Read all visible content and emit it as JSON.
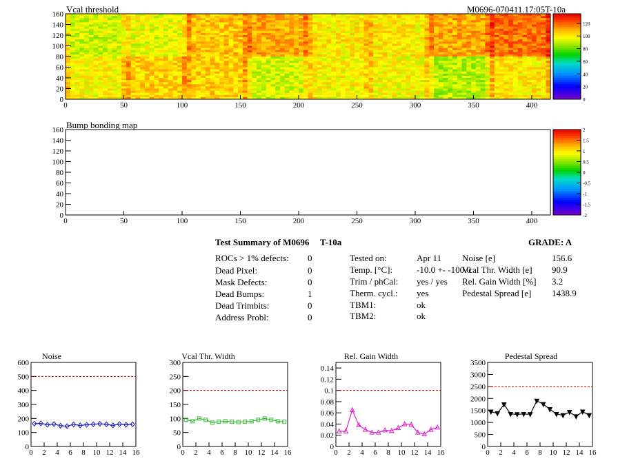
{
  "chart_data": [
    {
      "id": "vcal-threshold-map",
      "type": "heatmap",
      "title": "Vcal threshold",
      "subtitle": "M0696-070411.17:05T-10a",
      "xlim": [
        0,
        416
      ],
      "ylim": [
        0,
        160
      ],
      "x_ticks": [
        0,
        50,
        100,
        150,
        200,
        250,
        300,
        350,
        400
      ],
      "y_ticks": [
        0,
        20,
        40,
        60,
        80,
        100,
        120,
        140,
        160
      ],
      "z_ticks": [
        0,
        20,
        40,
        60,
        80,
        100,
        120
      ],
      "z_range": [
        0,
        135
      ],
      "roc_means": {
        "top": [
          92,
          95,
          106,
          110,
          100,
          100,
          110,
          118
        ],
        "bottom": [
          98,
          104,
          104,
          92,
          98,
          97,
          88,
          100
        ]
      }
    },
    {
      "id": "bump-bonding-map",
      "type": "heatmap",
      "title": "Bump bonding map",
      "xlim": [
        0,
        416
      ],
      "ylim": [
        0,
        160
      ],
      "x_ticks": [
        0,
        50,
        100,
        150,
        200,
        250,
        300,
        350,
        400
      ],
      "y_ticks": [
        0,
        20,
        40,
        60,
        80,
        100,
        120,
        140,
        160
      ],
      "z_ticks": [
        -2,
        -1.5,
        -1,
        -0.5,
        0,
        0.5,
        1,
        1.5,
        2
      ],
      "z_range": [
        -2,
        2
      ]
    },
    {
      "id": "noise-plot",
      "type": "line",
      "title": "Noise",
      "xlim": [
        0,
        16
      ],
      "ylim": [
        0,
        600
      ],
      "x_ticks": [
        0,
        2,
        4,
        6,
        8,
        10,
        12,
        14,
        16
      ],
      "y_ticks": [
        0,
        100,
        200,
        300,
        400,
        500,
        600
      ],
      "y_decimals": 0,
      "threshold": 500,
      "color": "#1f1fbf",
      "marker": "diamond",
      "x": [
        0.5,
        1.5,
        2.5,
        3.5,
        4.5,
        5.5,
        6.5,
        7.5,
        8.5,
        9.5,
        10.5,
        11.5,
        12.5,
        13.5,
        14.5,
        15.5
      ],
      "values": [
        163,
        165,
        155,
        160,
        148,
        145,
        157,
        150,
        155,
        158,
        162,
        158,
        150,
        160,
        155,
        158
      ]
    },
    {
      "id": "vcal-thr-width-plot",
      "type": "line",
      "title": "Vcal Thr. Width",
      "xlim": [
        0,
        16
      ],
      "ylim": [
        0,
        300
      ],
      "x_ticks": [
        0,
        2,
        4,
        6,
        8,
        10,
        12,
        14,
        16
      ],
      "y_ticks": [
        0,
        50,
        100,
        150,
        200,
        250,
        300
      ],
      "y_decimals": 0,
      "threshold": 200,
      "color": "#33bb33",
      "marker": "square",
      "x": [
        0.5,
        1.5,
        2.5,
        3.5,
        4.5,
        5.5,
        6.5,
        7.5,
        8.5,
        9.5,
        10.5,
        11.5,
        12.5,
        13.5,
        14.5,
        15.5
      ],
      "values": [
        95,
        90,
        100,
        95,
        85,
        88,
        90,
        88,
        87,
        88,
        90,
        95,
        100,
        95,
        90,
        88
      ]
    },
    {
      "id": "rel-gain-width-plot",
      "type": "line",
      "title": "Rel. Gain Width",
      "xlim": [
        0,
        16
      ],
      "ylim": [
        0,
        0.15
      ],
      "x_ticks": [
        0,
        2,
        4,
        6,
        8,
        10,
        12,
        14,
        16
      ],
      "y_ticks": [
        0,
        0.02,
        0.04,
        0.06,
        0.08,
        0.1,
        0.12,
        0.14
      ],
      "y_decimals": 2,
      "threshold": 0.1,
      "color": "#dd22cc",
      "marker": "triangle",
      "x": [
        0.5,
        1.5,
        2.5,
        3.5,
        4.5,
        5.5,
        6.5,
        7.5,
        8.5,
        9.5,
        10.5,
        11.5,
        12.5,
        13.5,
        14.5,
        15.5
      ],
      "values": [
        0.027,
        0.027,
        0.065,
        0.038,
        0.03,
        0.025,
        0.025,
        0.029,
        0.028,
        0.033,
        0.04,
        0.039,
        0.025,
        0.022,
        0.03,
        0.034
      ]
    },
    {
      "id": "pedestal-spread-plot",
      "type": "line",
      "title": "Pedestal Spread",
      "xlim": [
        0,
        16
      ],
      "ylim": [
        0,
        3500
      ],
      "x_ticks": [
        0,
        2,
        4,
        6,
        8,
        10,
        12,
        14,
        16
      ],
      "y_ticks": [
        0,
        500,
        1000,
        1500,
        2000,
        2500,
        3000,
        3500
      ],
      "y_decimals": 0,
      "threshold": 2500,
      "color": "#000000",
      "marker": "inverted-triangle",
      "x": [
        0.5,
        1.5,
        2.5,
        3.5,
        4.5,
        5.5,
        6.5,
        7.5,
        8.5,
        9.5,
        10.5,
        11.5,
        12.5,
        13.5,
        14.5,
        15.5
      ],
      "values": [
        1450,
        1380,
        1750,
        1350,
        1340,
        1350,
        1340,
        1900,
        1760,
        1550,
        1350,
        1300,
        1430,
        1250,
        1450,
        1300
      ]
    }
  ],
  "summary": {
    "title": "Test Summary of M0696",
    "temp_label": "T-10a",
    "grade": "GRADE:  A",
    "col1": [
      {
        "label": "ROCs > 1% defects:",
        "value": "0"
      },
      {
        "label": "Dead Pixel:",
        "value": "0"
      },
      {
        "label": "Mask Defects:",
        "value": "0"
      },
      {
        "label": "Dead Bumps:",
        "value": "1"
      },
      {
        "label": "Dead Trimbits:",
        "value": "0"
      },
      {
        "label": "Address Probl:",
        "value": "0"
      }
    ],
    "col2": [
      {
        "label": "Tested on:",
        "value": "Apr 11"
      },
      {
        "label": "Temp. [°C]:",
        "value": "-10.0 +- -100.0"
      },
      {
        "label": "Trim / phCal:",
        "value": "yes / yes"
      },
      {
        "label": "Therm. cycl.:",
        "value": "yes"
      },
      {
        "label": "TBM1:",
        "value": "ok"
      },
      {
        "label": "TBM2:",
        "value": "ok"
      }
    ],
    "col3": [
      {
        "label": "Noise [e]",
        "value": "156.6"
      },
      {
        "label": "Vcal Thr. Width [e]",
        "value": "90.9"
      },
      {
        "label": "Rel. Gain Width [%]",
        "value": "3.2"
      },
      {
        "label": "Pedestal Spread [e]",
        "value": "1438.9"
      }
    ]
  }
}
